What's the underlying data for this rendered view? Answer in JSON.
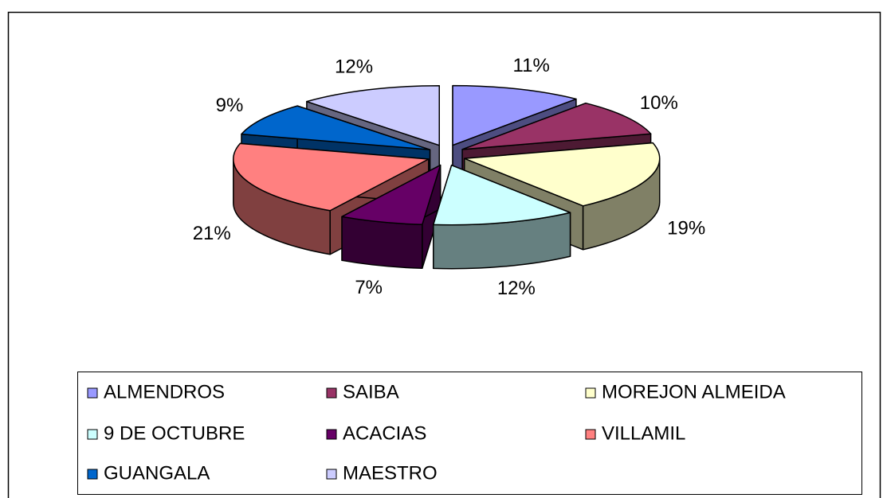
{
  "chart_data": {
    "type": "pie3d",
    "categories": [
      "ALMENDROS",
      "SAIBA",
      "MOREJON ALMEIDA",
      "9 DE OCTUBRE",
      "ACACIAS",
      "VILLAMIL",
      "GUANGALA",
      "MAESTRO"
    ],
    "values": [
      11,
      10,
      19,
      12,
      7,
      21,
      9,
      12
    ],
    "value_labels": [
      "11%",
      "10%",
      "19%",
      "12%",
      "7%",
      "21%",
      "9%",
      "12%"
    ],
    "colors": [
      "#9999ff",
      "#993366",
      "#ffffcc",
      "#ccffff",
      "#660066",
      "#ff8080",
      "#0066cc",
      "#ccccff"
    ],
    "legend": "bottom"
  }
}
